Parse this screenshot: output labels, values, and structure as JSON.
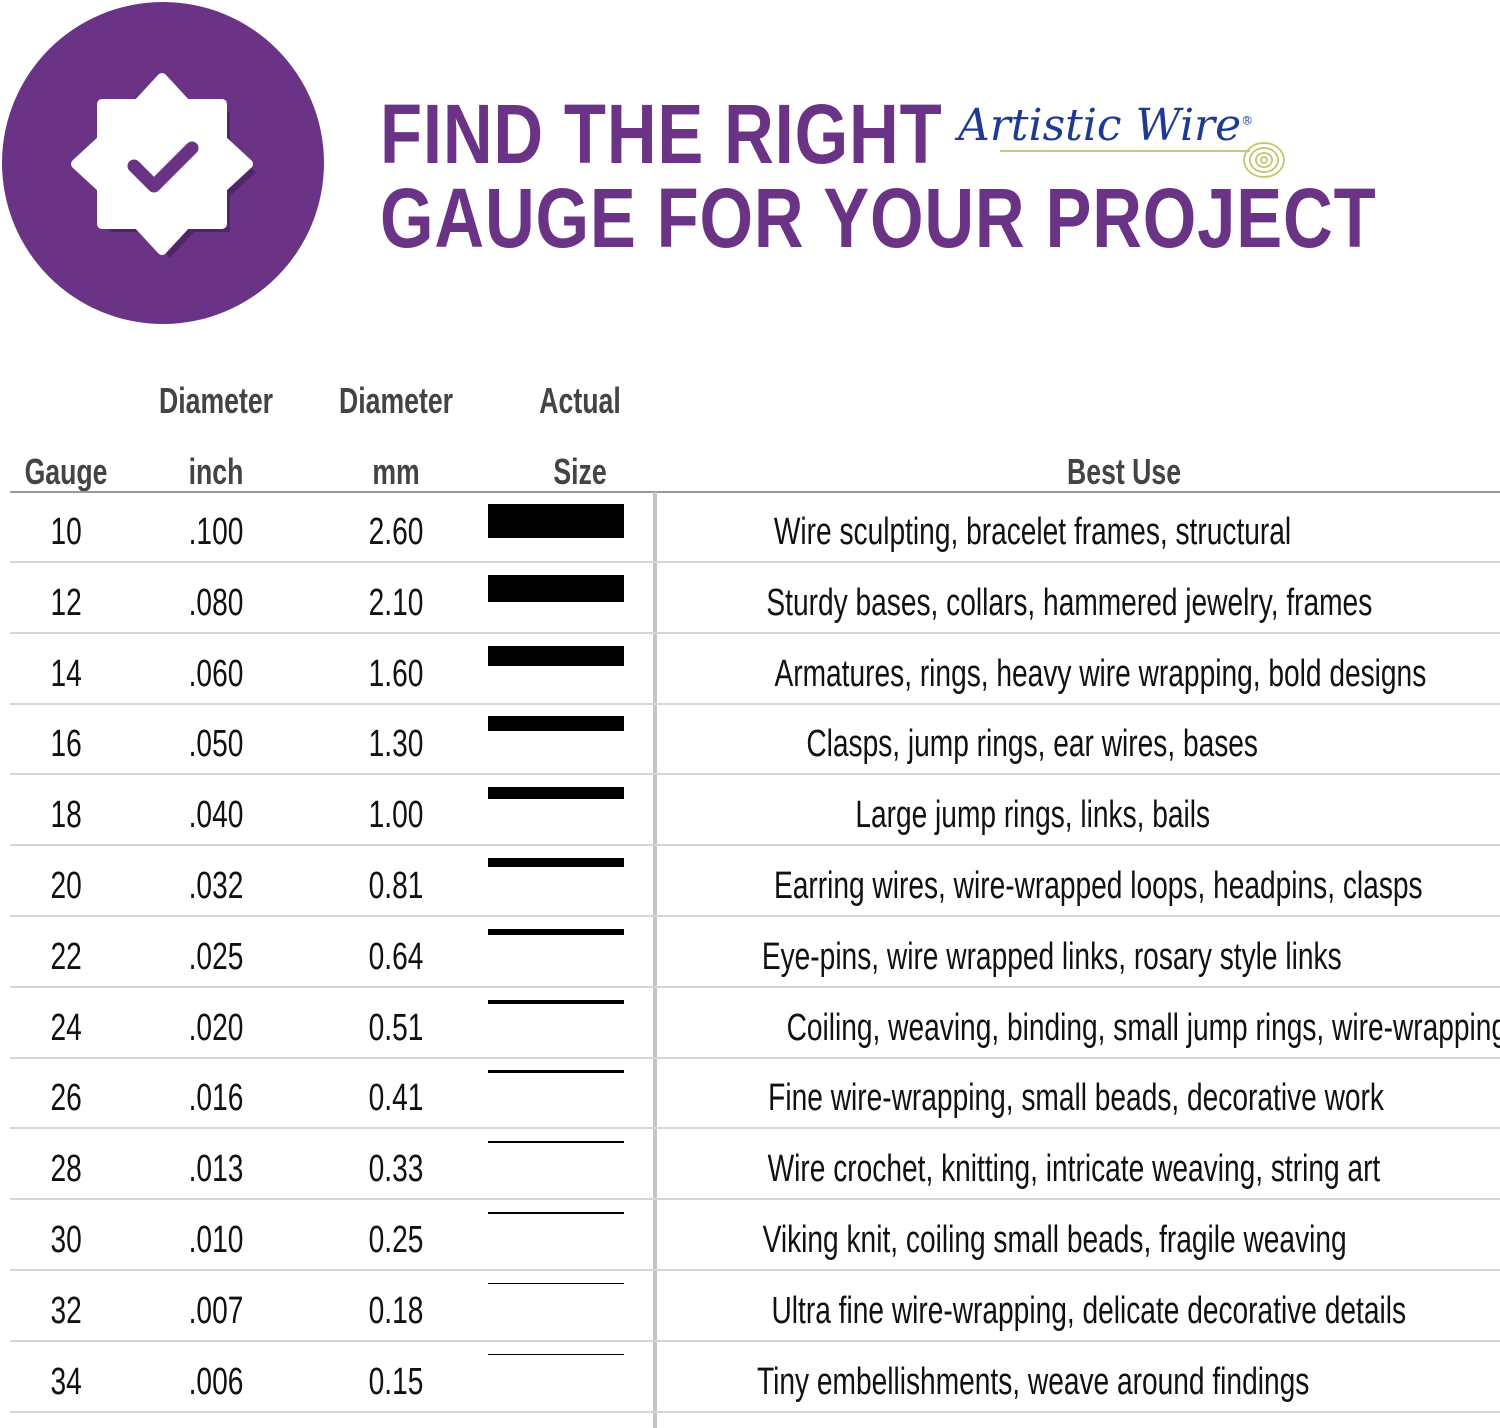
{
  "header": {
    "title_line1": "FIND THE RIGHT",
    "title_line2": "GAUGE FOR YOUR PROJECT",
    "brand": "Artistic Wire",
    "brand_mark": "®",
    "badge_icon": "check-badge-icon",
    "accent_color": "#6b3386"
  },
  "table": {
    "columns": [
      {
        "line1": "",
        "line2": "Gauge"
      },
      {
        "line1": "Diameter",
        "line2": "inch"
      },
      {
        "line1": "Diameter",
        "line2": "mm"
      },
      {
        "line1": "Actual",
        "line2": "Size"
      },
      {
        "line1": "",
        "line2": "Best Use"
      }
    ],
    "rows": [
      {
        "gauge": "10",
        "inch": ".100",
        "mm": "2.60",
        "use": "Wire sculpting, bracelet frames, structural"
      },
      {
        "gauge": "12",
        "inch": ".080",
        "mm": "2.10",
        "use": "Sturdy bases, collars, hammered jewelry, frames"
      },
      {
        "gauge": "14",
        "inch": ".060",
        "mm": "1.60",
        "use": "Armatures, rings, heavy wire wrapping, bold designs"
      },
      {
        "gauge": "16",
        "inch": ".050",
        "mm": "1.30",
        "use": "Clasps, jump rings, ear wires, bases"
      },
      {
        "gauge": "18",
        "inch": ".040",
        "mm": "1.00",
        "use": "Large jump rings, links, bails"
      },
      {
        "gauge": "20",
        "inch": ".032",
        "mm": "0.81",
        "use": "Earring wires, wire-wrapped loops, headpins, clasps"
      },
      {
        "gauge": "22",
        "inch": ".025",
        "mm": "0.64",
        "use": "Eye-pins, wire wrapped links, rosary style links"
      },
      {
        "gauge": "24",
        "inch": ".020",
        "mm": "0.51",
        "use": "Coiling, weaving, binding, small jump rings, wire-wrapping"
      },
      {
        "gauge": "26",
        "inch": ".016",
        "mm": "0.41",
        "use": "Fine wire-wrapping, small beads, decorative work"
      },
      {
        "gauge": "28",
        "inch": ".013",
        "mm": "0.33",
        "use": "Wire crochet, knitting, intricate weaving, string art"
      },
      {
        "gauge": "30",
        "inch": ".010",
        "mm": "0.25",
        "use": "Viking knit, coiling small beads, fragile weaving"
      },
      {
        "gauge": "32",
        "inch": ".007",
        "mm": "0.18",
        "use": "Ultra fine wire-wrapping, delicate decorative details"
      },
      {
        "gauge": "34",
        "inch": ".006",
        "mm": "0.15",
        "use": "Tiny embellishments, weave around findings"
      }
    ]
  }
}
